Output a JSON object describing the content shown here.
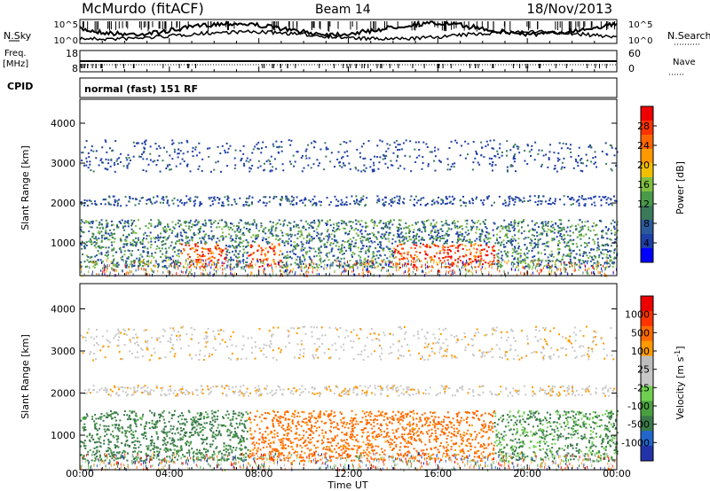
{
  "header": {
    "station": "McMurdo (fitACF)",
    "beam": "Beam 14",
    "date": "18/Nov/2013"
  },
  "side_labels": {
    "nsky": "N.Sky",
    "nsearch": "N.Search",
    "freq_line1": "Freq.",
    "freq_line2": "[MHz]",
    "nave": "Nave",
    "cpid": "CPID",
    "cpid_value": "normal (fast) 151 RF"
  },
  "noise_panel": {
    "left_ticks": [
      "10^5",
      "10^0"
    ],
    "right_ticks": [
      "10^5",
      "10^0"
    ]
  },
  "freq_panel": {
    "left_ticks": [
      "18",
      "8"
    ],
    "right_ticks": [
      "60",
      "0"
    ]
  },
  "colors": {
    "power": [
      "#0000ff",
      "#1f3fa8",
      "#2a5a9a",
      "#3a7a5a",
      "#4a9a4a",
      "#7fbf3f",
      "#f0c000",
      "#ff9900",
      "#ff6600",
      "#ff3300",
      "#ee0000"
    ],
    "velocity": [
      "#2233aa",
      "#2266cc",
      "#3a7a4a",
      "#4aa040",
      "#6fd050",
      "#c8c8c8",
      "#bdbdbd",
      "#ff9900",
      "#ff6a00",
      "#ff3300",
      "#ee0000"
    ]
  },
  "chart_data": [
    {
      "type": "heatmap",
      "name": "Power",
      "xlabel": "",
      "ylabel": "Slant Range [km]",
      "yticks": [
        "1000",
        "2000",
        "3000",
        "4000"
      ],
      "ylim": [
        180,
        4600
      ],
      "colorbar": {
        "label": "Power [dB]",
        "ticks": [
          "4",
          "8",
          "12",
          "16",
          "20",
          "24",
          "28"
        ],
        "range": [
          0,
          30
        ]
      }
    },
    {
      "type": "heatmap",
      "name": "Velocity",
      "xlabel": "Time UT",
      "ylabel": "Slant Range [km]",
      "xticks": [
        "00:00",
        "04:00",
        "08:00",
        "12:00",
        "16:00",
        "20:00",
        "00:00"
      ],
      "yticks": [
        "1000",
        "2000",
        "3000",
        "4000"
      ],
      "ylim": [
        180,
        4600
      ],
      "colorbar": {
        "label": "Velocity [m s^-1]",
        "ticks": [
          "1000",
          "500",
          "100",
          "25",
          "-25",
          "-100",
          "-500",
          "-1000"
        ]
      }
    }
  ]
}
